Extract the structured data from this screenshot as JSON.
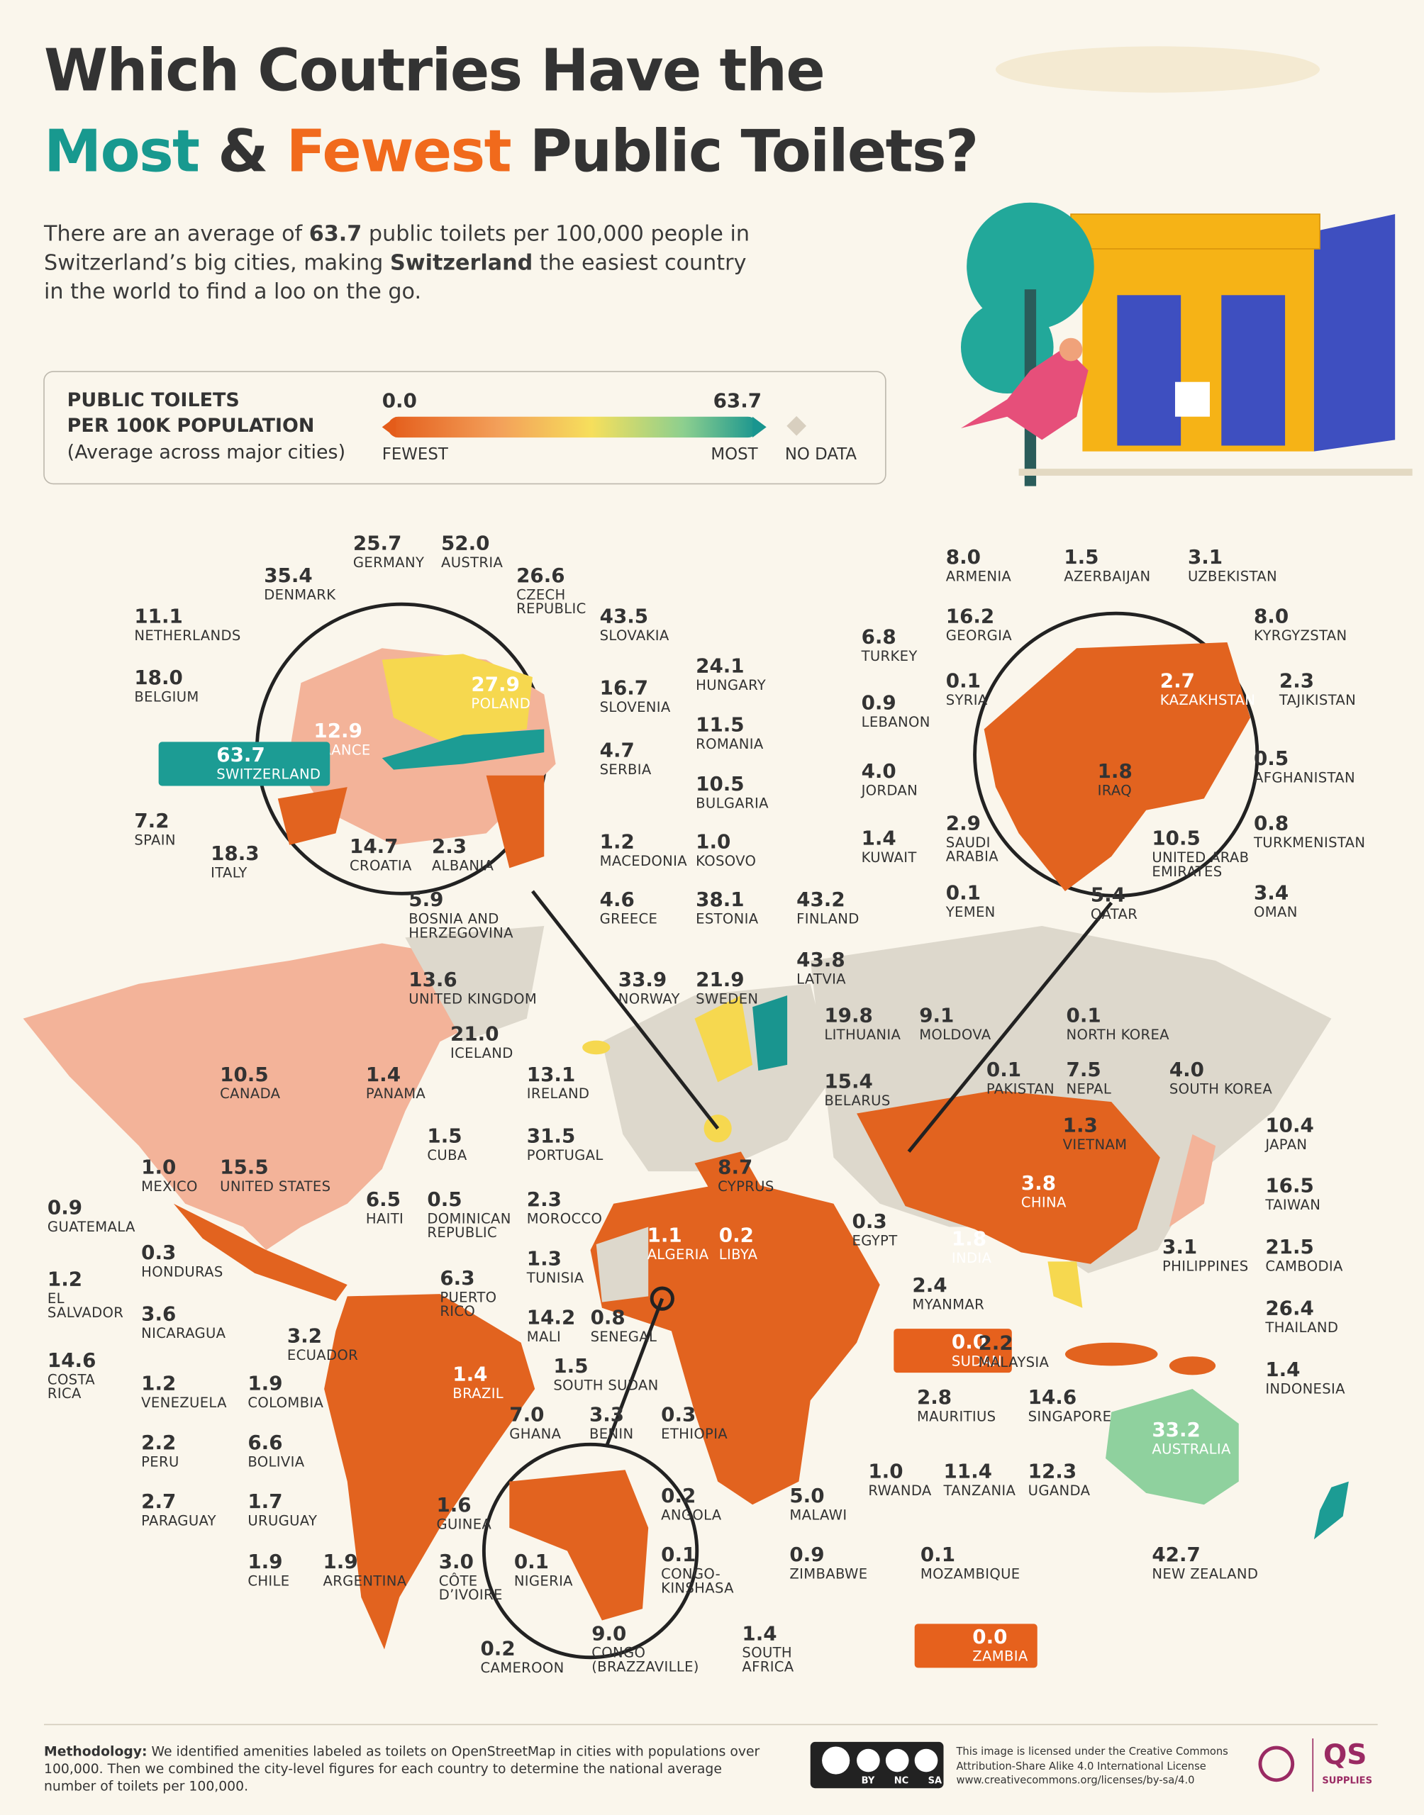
{
  "header": {
    "title_line1": "Which Coutries Have the",
    "title_most": "Most",
    "title_amp": "&",
    "title_fewest": "Fewest",
    "title_rest": "Public Toilets?"
  },
  "intro": {
    "part1": "There are an average of ",
    "bold1": "63.7",
    "part2": " public toilets per 100,000 people in Switzerland’s big cities, making ",
    "bold2": "Switzerland",
    "part3": " the easiest country in the world to find a loo on the go."
  },
  "legend": {
    "title": "PUBLIC TOILETS\nPER 100K POPULATION",
    "subtitle": "(Average across major cities)",
    "min": "0.0",
    "max": "63.7",
    "min_label": "FEWEST",
    "max_label": "MOST",
    "no_data": "NO DATA"
  },
  "countries": [
    {
      "value": "25.7",
      "name": "GERMANY"
    },
    {
      "value": "52.0",
      "name": "AUSTRIA"
    },
    {
      "value": "35.4",
      "name": "DENMARK"
    },
    {
      "value": "26.6",
      "name": "CZECH\nREPUBLIC"
    },
    {
      "value": "11.1",
      "name": "NETHERLANDS"
    },
    {
      "value": "43.5",
      "name": "SLOVAKIA"
    },
    {
      "value": "18.0",
      "name": "BELGIUM"
    },
    {
      "value": "24.1",
      "name": "HUNGARY"
    },
    {
      "value": "16.7",
      "name": "SLOVENIA"
    },
    {
      "value": "27.9",
      "name": "POLAND"
    },
    {
      "value": "12.9",
      "name": "FRANCE"
    },
    {
      "value": "11.5",
      "name": "ROMANIA"
    },
    {
      "value": "63.7",
      "name": "SWITZERLAND"
    },
    {
      "value": "4.7",
      "name": "SERBIA"
    },
    {
      "value": "10.5",
      "name": "BULGARIA"
    },
    {
      "value": "7.2",
      "name": "SPAIN"
    },
    {
      "value": "14.7",
      "name": "CROATIA"
    },
    {
      "value": "2.3",
      "name": "ALBANIA"
    },
    {
      "value": "18.3",
      "name": "ITALY"
    },
    {
      "value": "1.2",
      "name": "MACEDONIA"
    },
    {
      "value": "1.0",
      "name": "KOSOVO"
    },
    {
      "value": "5.9",
      "name": "BOSNIA AND\nHERZEGOVINA"
    },
    {
      "value": "4.6",
      "name": "GREECE"
    },
    {
      "value": "38.1",
      "name": "ESTONIA"
    },
    {
      "value": "43.2",
      "name": "FINLAND"
    },
    {
      "value": "43.8",
      "name": "LATVIA"
    },
    {
      "value": "13.6",
      "name": "UNITED KINGDOM"
    },
    {
      "value": "33.9",
      "name": "NORWAY"
    },
    {
      "value": "21.9",
      "name": "SWEDEN"
    },
    {
      "value": "19.8",
      "name": "LITHUANIA"
    },
    {
      "value": "9.1",
      "name": "MOLDOVA"
    },
    {
      "value": "0.1",
      "name": "NORTH KOREA"
    },
    {
      "value": "21.0",
      "name": "ICELAND"
    },
    {
      "value": "13.1",
      "name": "IRELAND"
    },
    {
      "value": "10.5",
      "name": "CANADA"
    },
    {
      "value": "1.4",
      "name": "PANAMA"
    },
    {
      "value": "0.1",
      "name": "PAKISTAN"
    },
    {
      "value": "7.5",
      "name": "NEPAL"
    },
    {
      "value": "4.0",
      "name": "SOUTH KOREA"
    },
    {
      "value": "15.4",
      "name": "BELARUS"
    },
    {
      "value": "1.3",
      "name": "VIETNAM"
    },
    {
      "value": "10.4",
      "name": "JAPAN"
    },
    {
      "value": "1.5",
      "name": "CUBA"
    },
    {
      "value": "31.5",
      "name": "PORTUGAL"
    },
    {
      "value": "1.0",
      "name": "MEXICO"
    },
    {
      "value": "15.5",
      "name": "UNITED STATES"
    },
    {
      "value": "8.7",
      "name": "CYPRUS"
    },
    {
      "value": "3.8",
      "name": "CHINA"
    },
    {
      "value": "16.5",
      "name": "TAIWAN"
    },
    {
      "value": "6.5",
      "name": "HAITI"
    },
    {
      "value": "0.5",
      "name": "DOMINICAN\nREPUBLIC"
    },
    {
      "value": "2.3",
      "name": "MOROCCO"
    },
    {
      "value": "0.9",
      "name": "GUATEMALA"
    },
    {
      "value": "0.3",
      "name": "EGYPT"
    },
    {
      "value": "1.1",
      "name": "ALGERIA"
    },
    {
      "value": "0.2",
      "name": "LIBYA"
    },
    {
      "value": "1.8",
      "name": "INDIA"
    },
    {
      "value": "0.3",
      "name": "HONDURAS"
    },
    {
      "value": "1.3",
      "name": "TUNISIA"
    },
    {
      "value": "3.1",
      "name": "PHILIPPINES"
    },
    {
      "value": "21.5",
      "name": "CAMBODIA"
    },
    {
      "value": "1.2",
      "name": "EL\nSALVADOR"
    },
    {
      "value": "6.3",
      "name": "PUERTO\nRICO"
    },
    {
      "value": "2.4",
      "name": "MYANMAR"
    },
    {
      "value": "3.6",
      "name": "NICARAGUA"
    },
    {
      "value": "14.2",
      "name": "MALI"
    },
    {
      "value": "0.8",
      "name": "SENEGAL"
    },
    {
      "value": "26.4",
      "name": "THAILAND"
    },
    {
      "value": "0.0",
      "name": "SUDAN"
    },
    {
      "value": "2.2",
      "name": "MALAYSIA"
    },
    {
      "value": "3.2",
      "name": "ECUADOR"
    },
    {
      "value": "14.6",
      "name": "COSTA\nRICA"
    },
    {
      "value": "1.4",
      "name": "INDONESIA"
    },
    {
      "value": "1.5",
      "name": "SOUTH SUDAN"
    },
    {
      "value": "1.4",
      "name": "BRAZIL"
    },
    {
      "value": "1.2",
      "name": "VENEZUELA"
    },
    {
      "value": "1.9",
      "name": "COLOMBIA"
    },
    {
      "value": "2.8",
      "name": "MAURITIUS"
    },
    {
      "value": "14.6",
      "name": "SINGAPORE"
    },
    {
      "value": "7.0",
      "name": "GHANA"
    },
    {
      "value": "3.3",
      "name": "BENIN"
    },
    {
      "value": "0.3",
      "name": "ETHIOPIA"
    },
    {
      "value": "33.2",
      "name": "AUSTRALIA"
    },
    {
      "value": "2.2",
      "name": "PERU"
    },
    {
      "value": "6.6",
      "name": "BOLIVIA"
    },
    {
      "value": "1.0",
      "name": "RWANDA"
    },
    {
      "value": "11.4",
      "name": "TANZANIA"
    },
    {
      "value": "12.3",
      "name": "UGANDA"
    },
    {
      "value": "0.2",
      "name": "ANGOLA"
    },
    {
      "value": "2.7",
      "name": "PARAGUAY"
    },
    {
      "value": "1.7",
      "name": "URUGUAY"
    },
    {
      "value": "5.0",
      "name": "MALAWI"
    },
    {
      "value": "1.6",
      "name": "GUINEA"
    },
    {
      "value": "42.7",
      "name": "NEW ZEALAND"
    },
    {
      "value": "0.9",
      "name": "ZIMBABWE"
    },
    {
      "value": "0.1",
      "name": "MOZAMBIQUE"
    },
    {
      "value": "0.1",
      "name": "CONGO-\nKINSHASA"
    },
    {
      "value": "1.9",
      "name": "CHILE"
    },
    {
      "value": "1.9",
      "name": "ARGENTINA"
    },
    {
      "value": "3.0",
      "name": "CÔTE\nD’IVOIRE"
    },
    {
      "value": "0.1",
      "name": "NIGERIA"
    },
    {
      "value": "1.4",
      "name": "SOUTH\nAFRICA"
    },
    {
      "value": "0.0",
      "name": "ZAMBIA"
    },
    {
      "value": "0.2",
      "name": "CAMEROON"
    },
    {
      "value": "9.0",
      "name": "CONGO\n(BRAZZAVILLE)"
    },
    {
      "value": "8.0",
      "name": "ARMENIA"
    },
    {
      "value": "1.5",
      "name": "AZERBAIJAN"
    },
    {
      "value": "3.1",
      "name": "UZBEKISTAN"
    },
    {
      "value": "16.2",
      "name": "GEORGIA"
    },
    {
      "value": "8.0",
      "name": "KYRGYZSTAN"
    },
    {
      "value": "6.8",
      "name": "TURKEY"
    },
    {
      "value": "0.1",
      "name": "SYRIA"
    },
    {
      "value": "2.7",
      "name": "KAZAKHSTAN"
    },
    {
      "value": "2.3",
      "name": "TAJIKISTAN"
    },
    {
      "value": "0.9",
      "name": "LEBANON"
    },
    {
      "value": "0.5",
      "name": "AFGHANISTAN"
    },
    {
      "value": "4.0",
      "name": "JORDAN"
    },
    {
      "value": "1.8",
      "name": "IRAQ"
    },
    {
      "value": "0.8",
      "name": "TURKMENISTAN"
    },
    {
      "value": "1.4",
      "name": "KUWAIT"
    },
    {
      "value": "2.9",
      "name": "SAUDI\nARABIA"
    },
    {
      "value": "10.5",
      "name": "UNITED ARAB\nEMIRATES"
    },
    {
      "value": "0.1",
      "name": "YEMEN"
    },
    {
      "value": "5.4",
      "name": "QATAR"
    },
    {
      "value": "3.4",
      "name": "OMAN"
    }
  ],
  "footer": {
    "method_bold": "Methodology:",
    "method_text": " We identified amenities labeled as toilets on OpenStreetMap in cities with populations over 100,000. Then we combined the city-level figures for each country to determine the national average number of toilets per 100,000.",
    "cc_by": "BY",
    "cc_nc": "NC",
    "cc_sa": "SA",
    "license": "This image is licensed under the Creative Commons\nAttribution-Share Alike 4.0 International License\nwww.creativecommons.org/licenses/by-sa/4.0",
    "brand": "QS",
    "brand_sub": "SUPPLIES"
  }
}
